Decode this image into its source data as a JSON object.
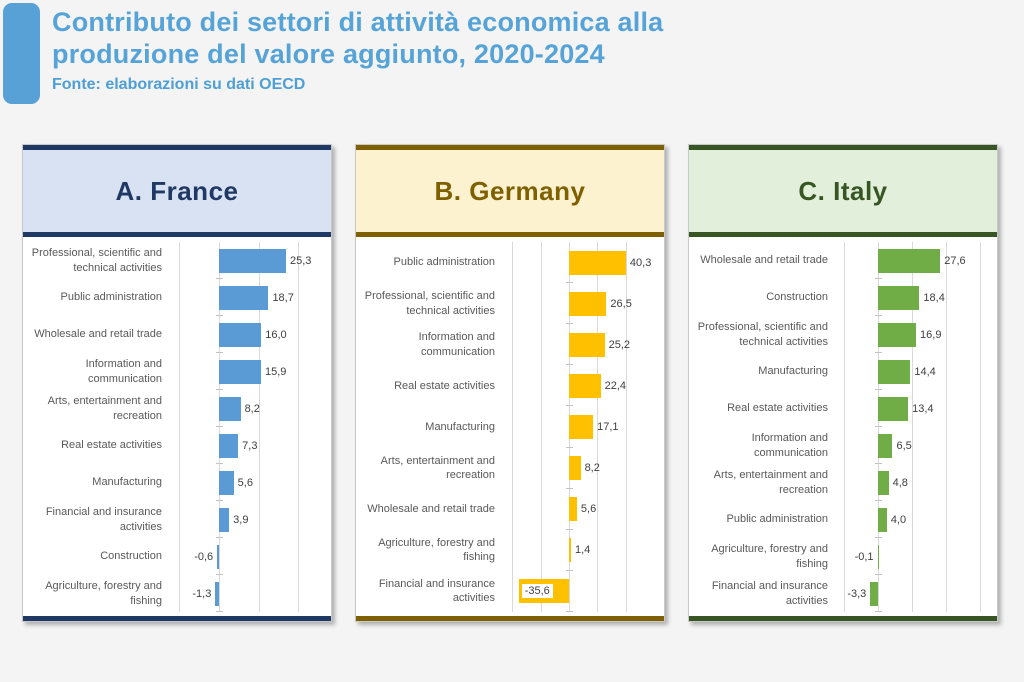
{
  "page": {
    "title": "Contributo dei settori di attività economica alla\nproduzione del valore aggiunto, 2020-2024",
    "source": "Fonte: elaborazioni su dati OECD",
    "title_color": "#56a3d8",
    "accent_bar_color": "#58a1d7",
    "background_color": "#f4f4f4"
  },
  "chart_data": [
    {
      "type": "bar",
      "orientation": "horizontal",
      "title": "A. France",
      "accent": "#1f3864",
      "header_bg": "#d9e2f3",
      "bar_color": "#5b9bd5",
      "axis_min": -18,
      "axis_max": 40,
      "gridlines": [
        -15,
        0,
        15,
        30
      ],
      "grid_on": true,
      "categories": [
        "Professional, scientific and technical activities",
        "Public administration",
        "Wholesale and retail trade",
        "Information and communication",
        "Arts, entertainment and recreation",
        "Real estate activities",
        "Manufacturing",
        "Financial and insurance activities",
        "Construction",
        "Agriculture, forestry and fishing"
      ],
      "values": [
        25.3,
        18.7,
        16.0,
        15.9,
        8.2,
        7.3,
        5.6,
        3.9,
        -0.6,
        -1.3
      ],
      "value_labels": [
        "25,3",
        "18,7",
        "16,0",
        "15,9",
        "8,2",
        "7,3",
        "5,6",
        "3,9",
        "-0,6",
        "-1,3"
      ],
      "inside_labels": []
    },
    {
      "type": "bar",
      "orientation": "horizontal",
      "title": "B. Germany",
      "accent": "#7f6000",
      "header_bg": "#fcf2cf",
      "bar_color": "#ffc000",
      "axis_min": -46,
      "axis_max": 63,
      "gridlines": [
        -40,
        -20,
        0,
        20,
        40
      ],
      "grid_on": true,
      "categories": [
        "Public administration",
        "Professional, scientific and technical activities",
        "Information and communication",
        "Real estate activities",
        "Manufacturing",
        "Arts, entertainment and recreation",
        "Wholesale and retail trade",
        "Agriculture, forestry and fishing",
        "Financial and insurance activities"
      ],
      "values": [
        40.3,
        26.5,
        25.2,
        22.4,
        17.1,
        8.2,
        5.6,
        1.4,
        -35.6
      ],
      "value_labels": [
        "40,3",
        "26,5",
        "25,2",
        "22,4",
        "17,1",
        "8,2",
        "5,6",
        "1,4",
        "-35,6"
      ],
      "inside_labels": [
        "Financial and insurance activities"
      ]
    },
    {
      "type": "bar",
      "orientation": "horizontal",
      "title": "C. Italy",
      "accent": "#375623",
      "header_bg": "#e2efda",
      "bar_color": "#70ad47",
      "axis_min": -18,
      "axis_max": 50,
      "gridlines": [
        -15,
        0,
        15,
        30,
        45
      ],
      "grid_on": true,
      "categories": [
        "Wholesale and retail trade",
        "Construction",
        "Professional, scientific and technical activities",
        "Manufacturing",
        "Real estate activities",
        "Information and communication",
        "Arts, entertainment and recreation",
        "Public administration",
        "Agriculture, forestry and fishing",
        "Financial and insurance activities"
      ],
      "values": [
        27.6,
        18.4,
        16.9,
        14.4,
        13.4,
        6.5,
        4.8,
        4.0,
        -0.1,
        -3.3
      ],
      "value_labels": [
        "27,6",
        "18,4",
        "16,9",
        "14,4",
        "13,4",
        "6,5",
        "4,8",
        "4,0",
        "-0,1",
        "-3,3"
      ],
      "inside_labels": []
    }
  ]
}
